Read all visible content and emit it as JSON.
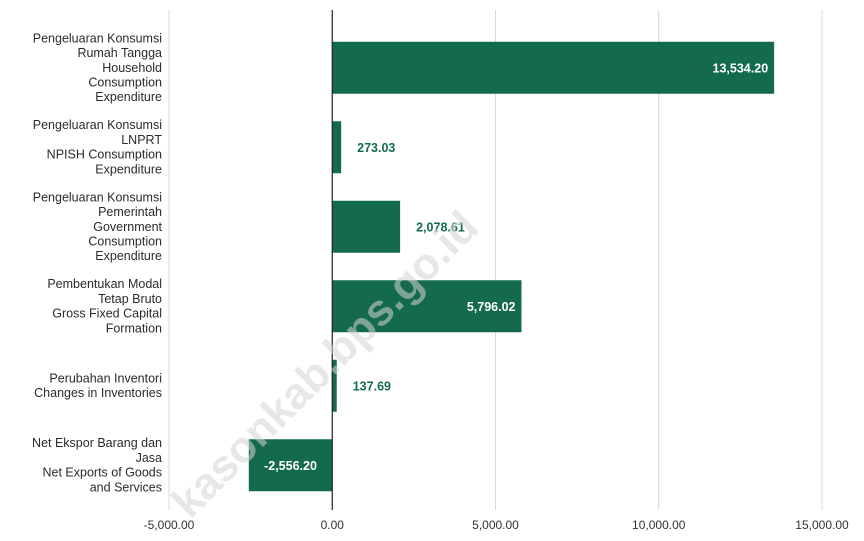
{
  "colors": {
    "bar": "#146b4b",
    "label_inside": "#ffffff",
    "label_outside": "#146b4b",
    "grid": "#d9d9d9",
    "zero_line": "#222222"
  },
  "watermark": "kasonkab.bps.go.id",
  "chart_data": {
    "type": "bar",
    "orientation": "horizontal",
    "title": "",
    "xlabel": "",
    "ylabel": "",
    "xlim": [
      -5000,
      15000
    ],
    "xticks": [
      -5000,
      0,
      5000,
      10000,
      15000
    ],
    "xtick_labels": [
      "-5,000.00",
      "0.00",
      "5,000.00",
      "10,000.00",
      "15,000.00"
    ],
    "grid": true,
    "legend": "none",
    "categories": [
      [
        "Pengeluaran Konsumsi",
        "Rumah Tangga",
        "Household",
        "Consumption",
        "Expenditure"
      ],
      [
        "Pengeluaran Konsumsi",
        "LNPRT",
        "NPISH Consumption",
        "Expenditure"
      ],
      [
        "Pengeluaran Konsumsi",
        "Pemerintah",
        "Government",
        "Consumption",
        "Expenditure"
      ],
      [
        "Pembentukan Modal",
        "Tetap Bruto",
        "Gross Fixed Capital",
        "Formation"
      ],
      [
        "Perubahan Inventori",
        "Changes in Inventories"
      ],
      [
        "Net Ekspor Barang dan",
        "Jasa",
        "Net Exports of Goods",
        "and Services"
      ]
    ],
    "values": [
      13534.2,
      273.03,
      2078.61,
      5796.02,
      137.69,
      -2556.2
    ],
    "value_labels": [
      "13,534.20",
      "273.03",
      "2,078.61",
      "5,796.02",
      "137.69",
      "-2,556.20"
    ]
  }
}
